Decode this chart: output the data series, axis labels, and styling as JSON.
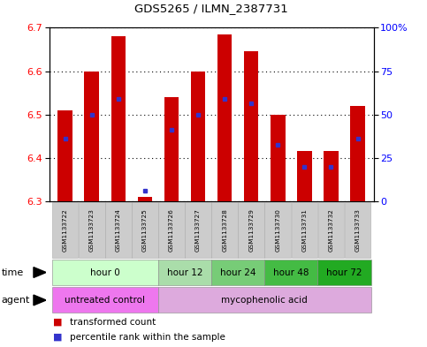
{
  "title": "GDS5265 / ILMN_2387731",
  "samples": [
    "GSM1133722",
    "GSM1133723",
    "GSM1133724",
    "GSM1133725",
    "GSM1133726",
    "GSM1133727",
    "GSM1133728",
    "GSM1133729",
    "GSM1133730",
    "GSM1133731",
    "GSM1133732",
    "GSM1133733"
  ],
  "bar_bottoms": [
    6.3,
    6.3,
    6.3,
    6.3,
    6.3,
    6.3,
    6.3,
    6.3,
    6.3,
    6.3,
    6.3,
    6.3
  ],
  "bar_tops": [
    6.51,
    6.6,
    6.68,
    6.31,
    6.54,
    6.6,
    6.685,
    6.645,
    6.5,
    6.415,
    6.415,
    6.52
  ],
  "blue_marks": [
    6.445,
    6.5,
    6.535,
    6.325,
    6.465,
    6.5,
    6.535,
    6.525,
    6.43,
    6.38,
    6.38,
    6.445
  ],
  "ylim": [
    6.3,
    6.7
  ],
  "yticks_left": [
    6.3,
    6.4,
    6.5,
    6.6,
    6.7
  ],
  "yticks_right": [
    0,
    25,
    50,
    75,
    100
  ],
  "ytick_right_labels": [
    "0",
    "25",
    "50",
    "75",
    "100%"
  ],
  "bar_color": "#cc0000",
  "blue_color": "#3333cc",
  "bg_color": "#ffffff",
  "time_groups": [
    {
      "label": "hour 0",
      "start": 0,
      "end": 4,
      "color": "#ccffcc"
    },
    {
      "label": "hour 12",
      "start": 4,
      "end": 6,
      "color": "#aaddaa"
    },
    {
      "label": "hour 24",
      "start": 6,
      "end": 8,
      "color": "#77cc77"
    },
    {
      "label": "hour 48",
      "start": 8,
      "end": 10,
      "color": "#44bb44"
    },
    {
      "label": "hour 72",
      "start": 10,
      "end": 12,
      "color": "#22aa22"
    }
  ],
  "agent_groups": [
    {
      "label": "untreated control",
      "start": 0,
      "end": 4,
      "color": "#ee77ee"
    },
    {
      "label": "mycophenolic acid",
      "start": 4,
      "end": 12,
      "color": "#ddaadd"
    }
  ],
  "legend_red_label": "transformed count",
  "legend_blue_label": "percentile rank within the sample",
  "time_label": "time",
  "agent_label": "agent"
}
